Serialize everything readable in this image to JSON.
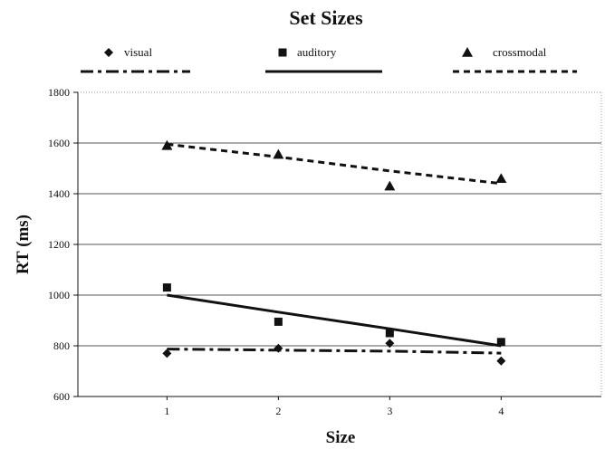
{
  "chart_data": {
    "type": "scatter",
    "title": "Set Sizes",
    "xlabel": "Size",
    "ylabel": "RT (ms)",
    "categories": [
      "1",
      "2",
      "3",
      "4"
    ],
    "x": [
      1,
      2,
      3,
      4
    ],
    "xlim": [
      0.2,
      4.9
    ],
    "ylim": [
      600,
      1800
    ],
    "yticks": [
      "600",
      "800",
      "1000",
      "1200",
      "1400",
      "1600",
      "1800"
    ],
    "grid": true,
    "legend_position": "top",
    "series": [
      {
        "name": "visual",
        "marker": "diamond",
        "line_style": "dash-dot",
        "values": [
          770,
          790,
          810,
          740
        ],
        "trend": [
          787,
          783,
          779,
          771
        ]
      },
      {
        "name": "auditory",
        "marker": "square",
        "line_style": "solid",
        "values": [
          1030,
          895,
          850,
          815
        ],
        "trend": [
          1000,
          933,
          867,
          800
        ]
      },
      {
        "name": "crossmodal",
        "marker": "triangle",
        "line_style": "dashed",
        "values": [
          1590,
          1555,
          1430,
          1460
        ],
        "trend": [
          1595,
          1545,
          1490,
          1440
        ]
      }
    ],
    "colors": {
      "ink": "#111111",
      "grid": "#555555",
      "background": "#ffffff"
    }
  }
}
